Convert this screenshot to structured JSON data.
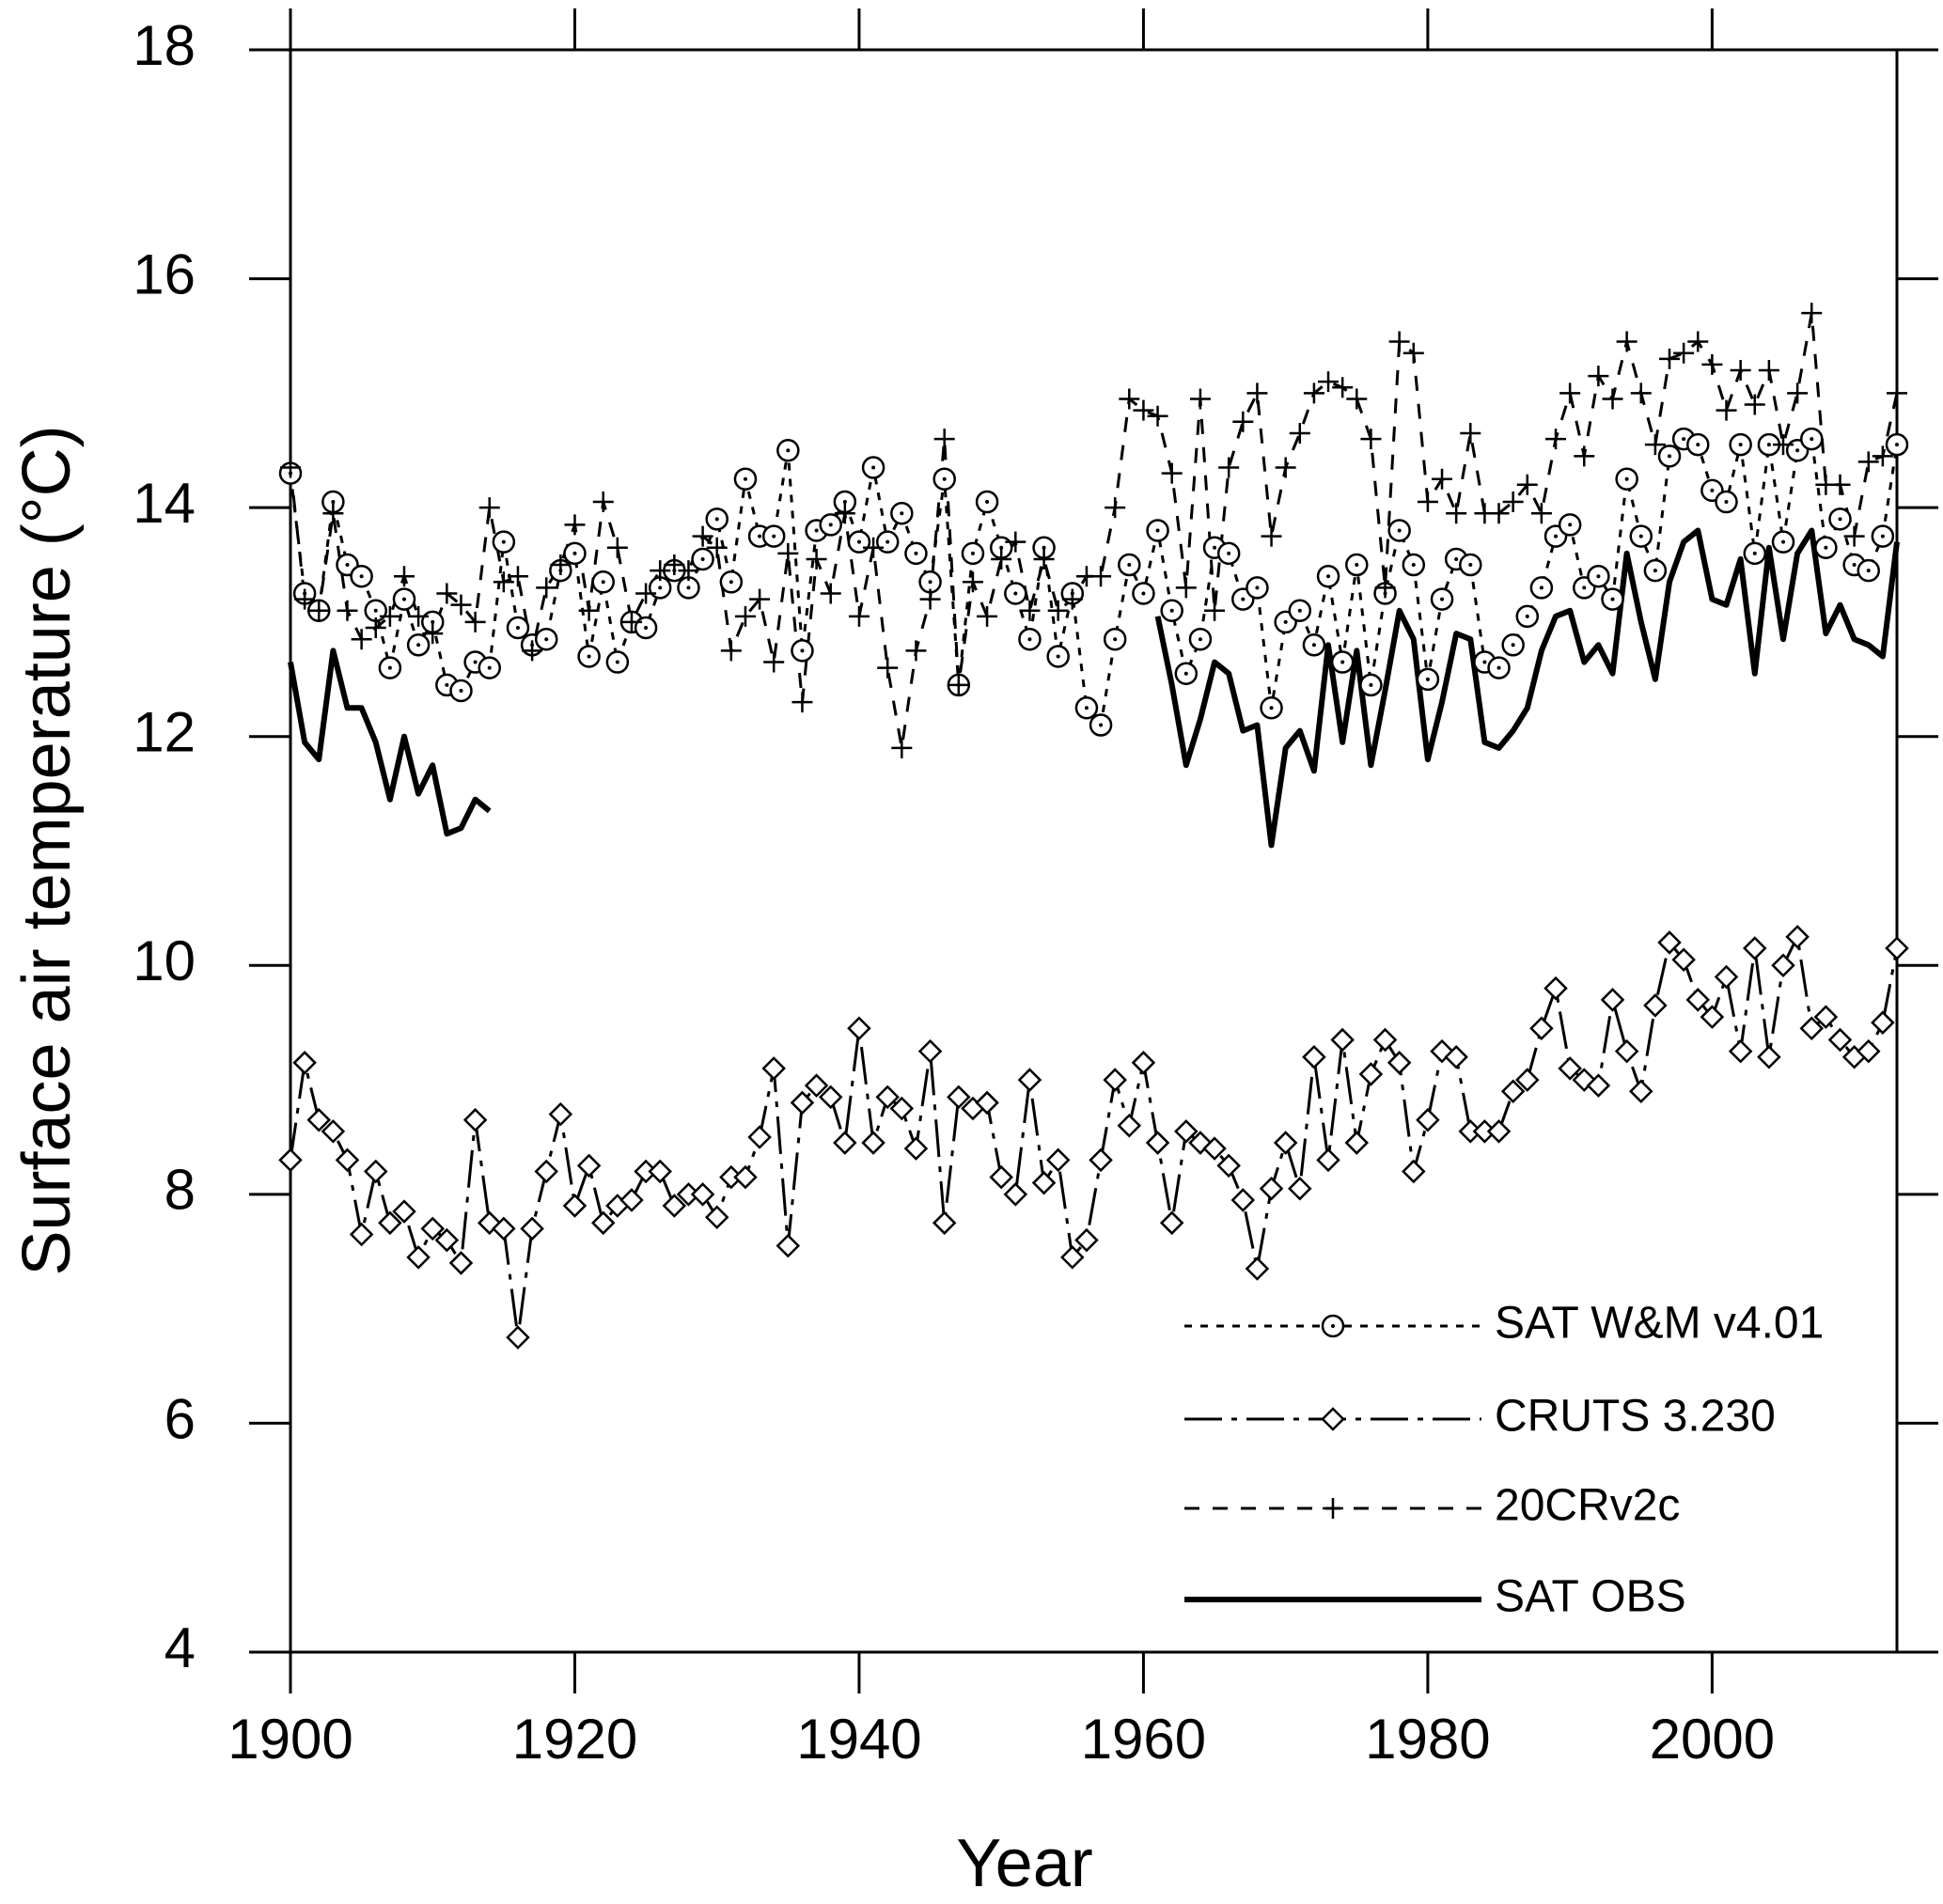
{
  "chart_data": {
    "type": "line",
    "x_label": "Year",
    "y_label": "Surface air temperature (°C)",
    "x": [
      1900,
      1901,
      1902,
      1903,
      1904,
      1905,
      1906,
      1907,
      1908,
      1909,
      1910,
      1911,
      1912,
      1913,
      1914,
      1915,
      1916,
      1917,
      1918,
      1919,
      1920,
      1921,
      1922,
      1923,
      1924,
      1925,
      1926,
      1927,
      1928,
      1929,
      1930,
      1931,
      1932,
      1933,
      1934,
      1935,
      1936,
      1937,
      1938,
      1939,
      1940,
      1941,
      1942,
      1943,
      1944,
      1945,
      1946,
      1947,
      1948,
      1949,
      1950,
      1951,
      1952,
      1953,
      1954,
      1955,
      1956,
      1957,
      1958,
      1959,
      1960,
      1961,
      1962,
      1963,
      1964,
      1965,
      1966,
      1967,
      1968,
      1969,
      1970,
      1971,
      1972,
      1973,
      1974,
      1975,
      1976,
      1977,
      1978,
      1979,
      1980,
      1981,
      1982,
      1983,
      1984,
      1985,
      1986,
      1987,
      1988,
      1989,
      1990,
      1991,
      1992,
      1993,
      1994,
      1995,
      1996,
      1997,
      1998,
      1999,
      2000,
      2001,
      2002,
      2003,
      2004,
      2005,
      2006,
      2007,
      2008,
      2009,
      2010,
      2011,
      2012,
      2013
    ],
    "xlim": [
      1900,
      2013
    ],
    "xticks": [
      1900,
      1920,
      1940,
      1960,
      1980,
      2000
    ],
    "ylim": [
      4,
      18
    ],
    "yticks": [
      4,
      6,
      8,
      10,
      12,
      14,
      16,
      18
    ],
    "legend": "lower right",
    "series": [
      {
        "name": "SAT W&M v4.01",
        "color": "#000000",
        "marker": "circle",
        "dash": "short",
        "values": [
          14.3,
          13.25,
          13.1,
          14.05,
          13.5,
          13.4,
          13.1,
          12.6,
          13.2,
          12.8,
          13.0,
          12.45,
          12.4,
          12.65,
          12.6,
          13.7,
          12.95,
          12.8,
          12.85,
          13.45,
          13.6,
          12.7,
          13.35,
          12.65,
          13.0,
          12.95,
          13.3,
          13.45,
          13.3,
          13.55,
          13.9,
          13.35,
          14.25,
          13.75,
          13.75,
          14.5,
          12.75,
          13.8,
          13.85,
          14.05,
          13.7,
          14.35,
          13.7,
          13.95,
          13.6,
          13.35,
          14.25,
          12.45,
          13.6,
          14.05,
          13.65,
          13.25,
          12.85,
          13.65,
          12.7,
          13.25,
          12.25,
          12.1,
          12.85,
          13.5,
          13.25,
          13.8,
          13.1,
          12.55,
          12.85,
          13.65,
          13.6,
          13.2,
          13.3,
          12.25,
          13.0,
          13.1,
          12.8,
          13.4,
          12.65,
          13.5,
          12.45,
          13.25,
          13.8,
          13.5,
          12.5,
          13.2,
          13.55,
          13.5,
          12.65,
          12.6,
          12.8,
          13.05,
          13.3,
          13.75,
          13.85,
          13.3,
          13.4,
          13.2,
          14.25,
          13.75,
          13.45,
          14.45,
          14.6,
          14.55,
          14.15,
          14.05,
          14.55,
          13.6,
          14.55,
          13.7,
          14.5,
          14.6,
          13.65,
          13.9,
          13.5,
          13.45,
          13.75,
          14.55
        ]
      },
      {
        "name": "CRUTS 3.230",
        "color": "#000000",
        "marker": "diamond",
        "dash": "dash-dot",
        "values": [
          8.3,
          9.15,
          8.65,
          8.55,
          8.3,
          7.65,
          8.2,
          7.75,
          7.85,
          7.45,
          7.7,
          7.6,
          7.4,
          8.65,
          7.75,
          7.7,
          6.75,
          7.7,
          8.2,
          8.7,
          7.9,
          8.25,
          7.75,
          7.9,
          7.95,
          8.2,
          8.2,
          7.9,
          8.0,
          8.0,
          7.8,
          8.15,
          8.15,
          8.5,
          9.1,
          7.55,
          8.8,
          8.95,
          8.85,
          8.45,
          9.45,
          8.45,
          8.85,
          8.75,
          8.4,
          9.25,
          7.75,
          8.85,
          8.75,
          8.8,
          8.15,
          8.0,
          9.0,
          8.1,
          8.3,
          7.45,
          7.6,
          8.3,
          9.0,
          8.6,
          9.15,
          8.45,
          7.75,
          8.55,
          8.45,
          8.4,
          8.25,
          7.95,
          7.35,
          8.05,
          8.45,
          8.05,
          9.2,
          8.3,
          9.35,
          8.45,
          9.05,
          9.35,
          9.15,
          8.2,
          8.65,
          9.25,
          9.2,
          8.55,
          8.55,
          8.55,
          8.9,
          9.0,
          9.45,
          9.8,
          9.1,
          9.0,
          8.95,
          9.7,
          9.25,
          8.9,
          9.65,
          10.2,
          10.05,
          9.7,
          9.55,
          9.9,
          9.25,
          10.15,
          9.2,
          10.0,
          10.25,
          9.45,
          9.55,
          9.35,
          9.2,
          9.25,
          9.5,
          10.15
        ]
      },
      {
        "name": "20CRv2c",
        "color": "#000000",
        "marker": "plus",
        "dash": "long",
        "values": [
          14.35,
          13.2,
          13.1,
          13.95,
          13.1,
          12.85,
          12.95,
          13.05,
          13.4,
          13.05,
          12.9,
          13.25,
          13.15,
          13.0,
          14.0,
          13.35,
          13.4,
          12.75,
          13.3,
          13.5,
          13.85,
          13.1,
          14.05,
          13.65,
          13.0,
          13.25,
          13.45,
          13.5,
          13.45,
          13.75,
          13.65,
          12.75,
          13.05,
          13.2,
          12.65,
          13.6,
          12.3,
          13.55,
          13.25,
          13.95,
          13.05,
          13.65,
          12.6,
          11.9,
          12.75,
          13.2,
          14.6,
          12.45,
          13.35,
          13.05,
          13.55,
          13.7,
          13.1,
          13.55,
          13.1,
          13.2,
          13.4,
          13.4,
          14.0,
          14.95,
          14.85,
          14.8,
          14.3,
          13.3,
          14.95,
          13.1,
          14.35,
          14.75,
          15.0,
          13.75,
          14.35,
          14.65,
          15.0,
          15.1,
          15.05,
          14.95,
          14.6,
          13.3,
          15.45,
          15.35,
          14.05,
          14.25,
          13.95,
          14.65,
          13.95,
          13.95,
          14.05,
          14.2,
          13.95,
          14.6,
          15.0,
          14.45,
          15.15,
          14.95,
          15.45,
          15.0,
          14.55,
          15.3,
          15.35,
          15.45,
          15.25,
          14.85,
          15.2,
          14.9,
          15.2,
          14.55,
          15.0,
          15.7,
          14.2,
          14.2,
          13.75,
          14.4,
          14.45,
          15.0
        ]
      },
      {
        "name": "SAT OBS",
        "color": "#000000",
        "marker": "none",
        "dash": "solid",
        "values": [
          12.65,
          11.95,
          11.8,
          12.75,
          12.25,
          12.25,
          11.95,
          11.45,
          12.0,
          11.5,
          11.75,
          11.15,
          11.2,
          11.45,
          11.35,
          null,
          null,
          null,
          null,
          null,
          null,
          null,
          null,
          null,
          null,
          null,
          null,
          null,
          null,
          null,
          null,
          null,
          null,
          null,
          null,
          null,
          null,
          null,
          null,
          null,
          null,
          null,
          null,
          null,
          null,
          null,
          null,
          null,
          null,
          null,
          null,
          null,
          null,
          null,
          null,
          null,
          null,
          null,
          null,
          null,
          null,
          13.05,
          12.45,
          11.75,
          12.15,
          12.65,
          12.55,
          12.05,
          12.1,
          11.05,
          11.9,
          12.05,
          11.7,
          12.8,
          11.95,
          12.75,
          11.75,
          12.4,
          13.1,
          12.85,
          11.8,
          12.3,
          12.9,
          12.85,
          11.95,
          11.9,
          12.05,
          12.25,
          12.75,
          13.05,
          13.1,
          12.65,
          12.8,
          12.55,
          13.6,
          13.0,
          12.5,
          13.35,
          13.7,
          13.8,
          13.2,
          13.15,
          13.55,
          12.55,
          13.65,
          12.85,
          13.6,
          13.8,
          12.9,
          13.15,
          12.85,
          12.8,
          12.7,
          13.7
        ]
      }
    ]
  }
}
